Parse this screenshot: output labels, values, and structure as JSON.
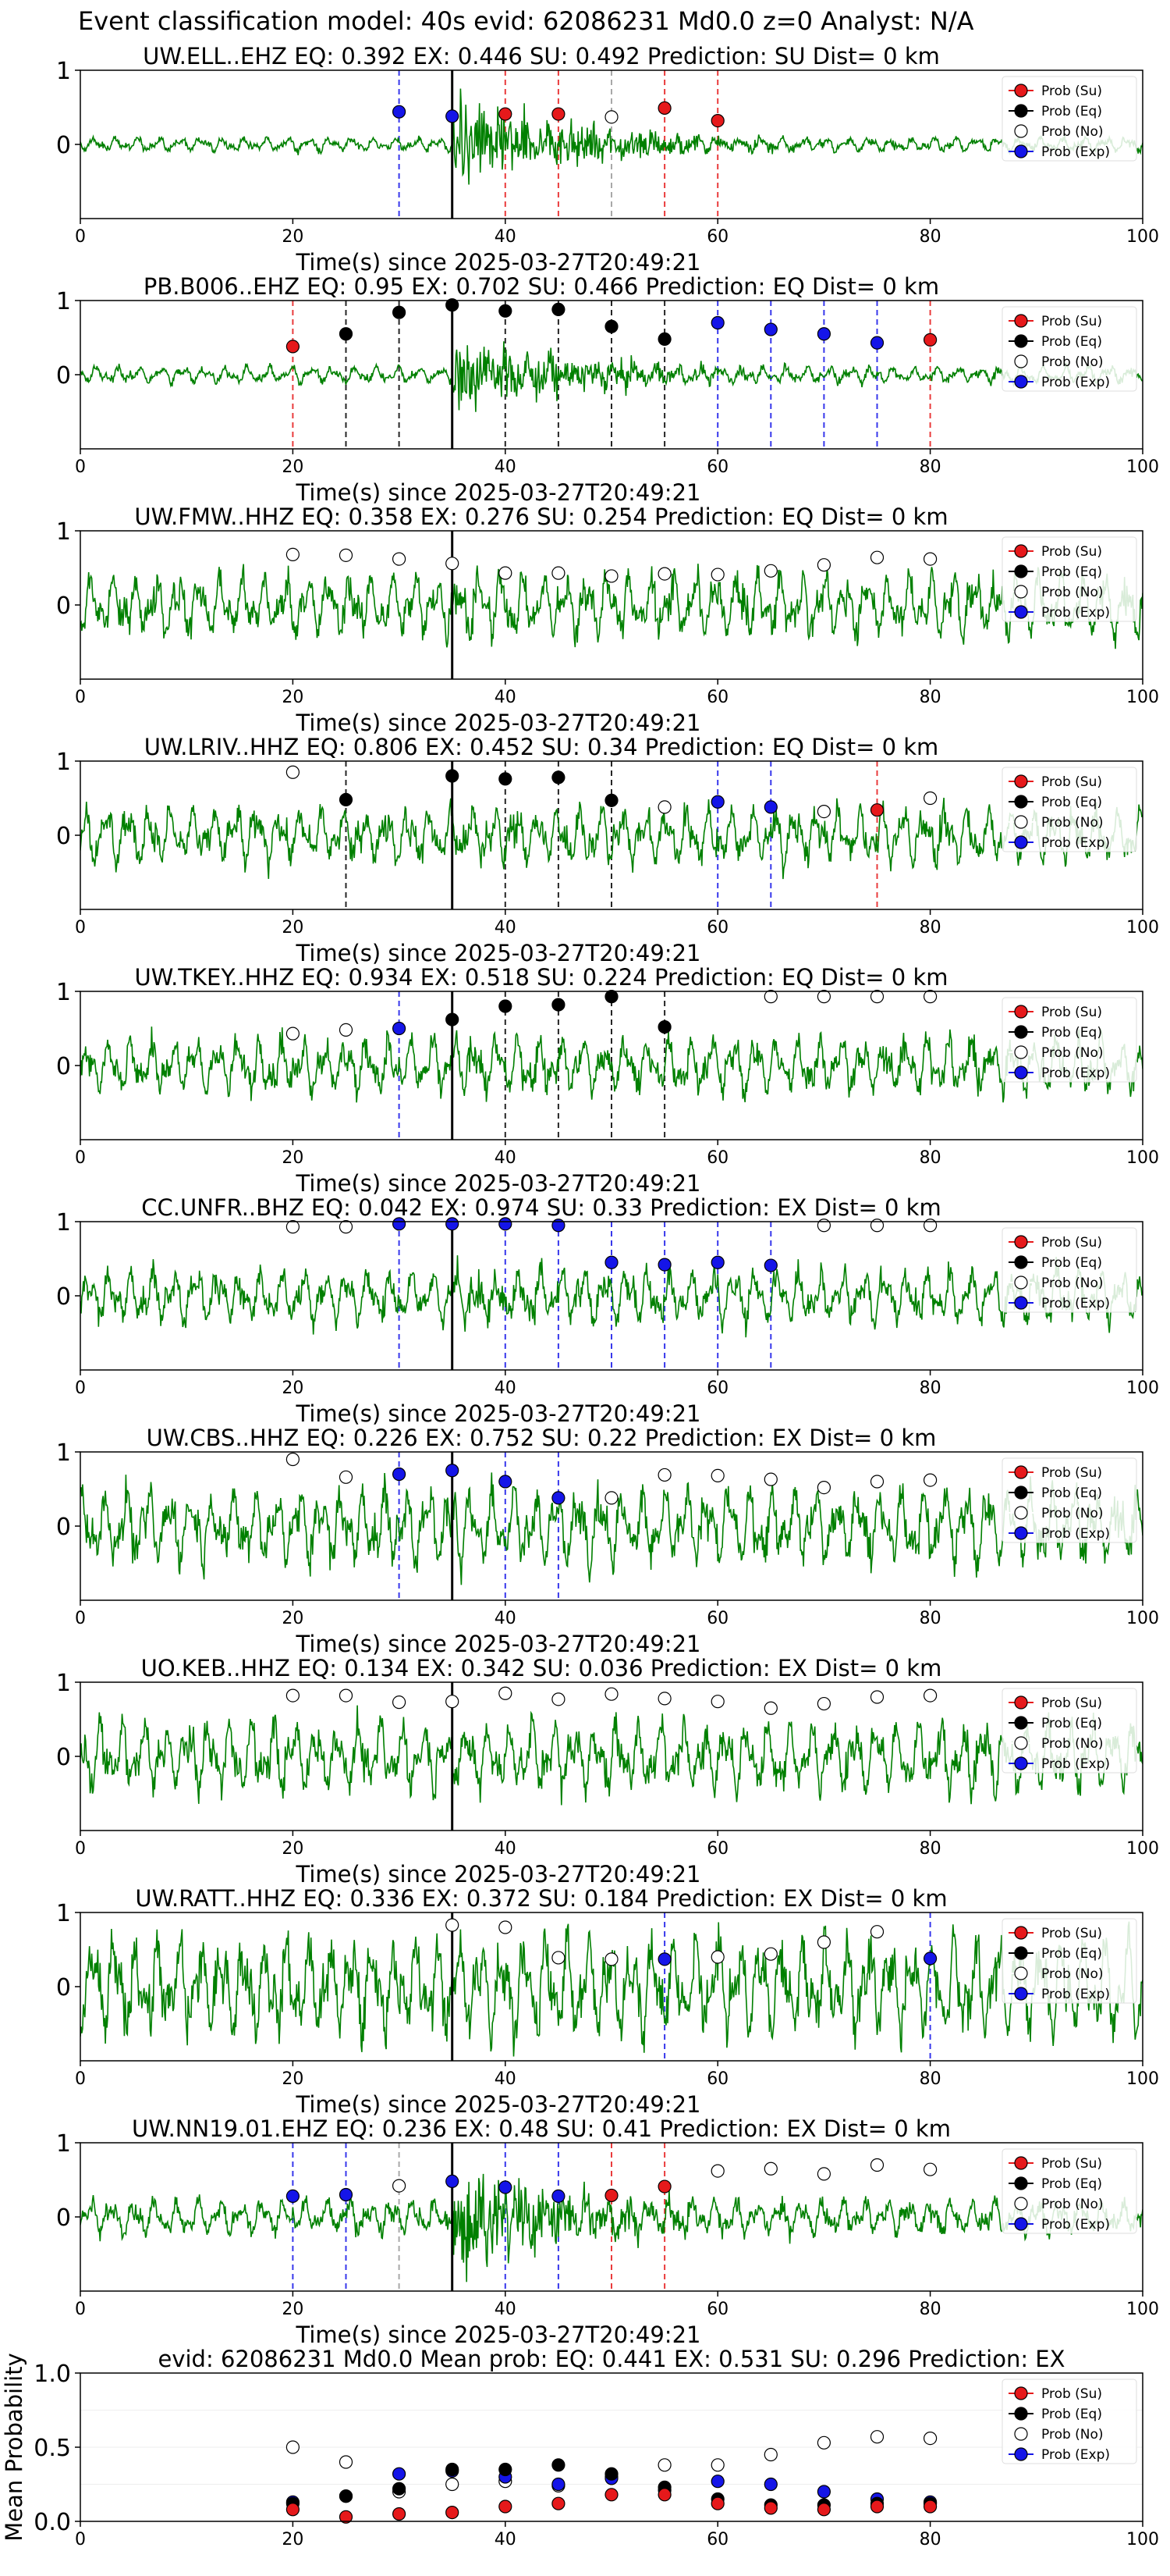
{
  "figure": {
    "title": "Event classification model: 40s evid: 62086231 Md0.0 z=0 Analyst: N/A"
  },
  "legend_items": [
    "Prob (Su)",
    "Prob (Eq)",
    "Prob (No)",
    "Prob (Exp)"
  ],
  "colors": {
    "su": "#e6191b",
    "eq": "#000000",
    "no": "#ffffff",
    "exp": "#1515e8",
    "waveform": "#008000",
    "pick": "#000000"
  },
  "chart_data": [
    {
      "type": "line",
      "station": "UW.ELL..EHZ",
      "title_parts": [
        "UW.ELL..EHZ",
        "EQ: 0.392",
        "EX: 0.446",
        "SU: 0.492",
        "Prediction: SU",
        "Dist= 0 km"
      ],
      "xlabel": "Time(s) since 2025-03-27T20:49:21",
      "xlim": [
        0,
        100
      ],
      "ylim": [
        -1,
        1
      ],
      "xticks": [
        "0",
        "20",
        "40",
        "60",
        "80",
        "100"
      ],
      "yticks": [
        "1",
        "0"
      ],
      "pick_time": 35,
      "noise_amp": 0.1,
      "event_amp": 0.45,
      "windows": [
        [
          30,
          "exp"
        ],
        [
          35,
          "exp"
        ],
        [
          40,
          "su"
        ],
        [
          45,
          "su"
        ],
        [
          50,
          "no"
        ],
        [
          55,
          "su"
        ],
        [
          60,
          "su"
        ]
      ],
      "markers": [
        [
          30,
          0.44,
          "exp"
        ],
        [
          35,
          0.38,
          "exp"
        ],
        [
          40,
          0.41,
          "su"
        ],
        [
          45,
          0.41,
          "su"
        ],
        [
          50,
          0.37,
          "no"
        ],
        [
          55,
          0.49,
          "su"
        ],
        [
          60,
          0.32,
          "su"
        ]
      ]
    },
    {
      "type": "line",
      "station": "PB.B006..EHZ",
      "title_parts": [
        "PB.B006..EHZ",
        "EQ: 0.95",
        "EX: 0.702",
        "SU: 0.466",
        "Prediction: EQ",
        "Dist= 0 km"
      ],
      "xlabel": "Time(s) since 2025-03-27T20:49:21",
      "xlim": [
        0,
        100
      ],
      "ylim": [
        -1,
        1
      ],
      "xticks": [
        "0",
        "20",
        "40",
        "60",
        "80",
        "100"
      ],
      "yticks": [
        "1",
        "0"
      ],
      "pick_time": 35,
      "noise_amp": 0.12,
      "event_amp": 0.35,
      "windows": [
        [
          20,
          "su"
        ],
        [
          25,
          "eq"
        ],
        [
          30,
          "eq"
        ],
        [
          35,
          "eq"
        ],
        [
          40,
          "eq"
        ],
        [
          45,
          "eq"
        ],
        [
          50,
          "eq"
        ],
        [
          55,
          "eq"
        ],
        [
          60,
          "exp"
        ],
        [
          65,
          "exp"
        ],
        [
          70,
          "exp"
        ],
        [
          75,
          "exp"
        ],
        [
          80,
          "su"
        ]
      ],
      "markers": [
        [
          20,
          0.38,
          "su"
        ],
        [
          25,
          0.55,
          "eq"
        ],
        [
          30,
          0.84,
          "eq"
        ],
        [
          35,
          0.94,
          "eq"
        ],
        [
          40,
          0.86,
          "eq"
        ],
        [
          45,
          0.88,
          "eq"
        ],
        [
          50,
          0.65,
          "eq"
        ],
        [
          55,
          0.48,
          "eq"
        ],
        [
          60,
          0.7,
          "exp"
        ],
        [
          65,
          0.61,
          "exp"
        ],
        [
          70,
          0.55,
          "exp"
        ],
        [
          75,
          0.43,
          "exp"
        ],
        [
          80,
          0.47,
          "su"
        ]
      ]
    },
    {
      "type": "line",
      "station": "UW.FMW..HHZ",
      "title_parts": [
        "UW.FMW..HHZ",
        "EQ: 0.358",
        "EX: 0.276",
        "SU: 0.254",
        "Prediction: EQ",
        "Dist= 0 km"
      ],
      "xlabel": "Time(s) since 2025-03-27T20:49:21",
      "xlim": [
        0,
        100
      ],
      "ylim": [
        -1,
        1
      ],
      "xticks": [
        "0",
        "20",
        "40",
        "60",
        "80",
        "100"
      ],
      "yticks": [
        "1",
        "0"
      ],
      "pick_time": 35,
      "noise_amp": 0.45,
      "event_amp": 0.1,
      "windows": [],
      "markers": [
        [
          20,
          0.68,
          "no"
        ],
        [
          25,
          0.67,
          "no"
        ],
        [
          30,
          0.62,
          "no"
        ],
        [
          35,
          0.56,
          "no"
        ],
        [
          40,
          0.43,
          "no"
        ],
        [
          45,
          0.43,
          "no"
        ],
        [
          50,
          0.39,
          "no"
        ],
        [
          55,
          0.42,
          "no"
        ],
        [
          60,
          0.41,
          "no"
        ],
        [
          65,
          0.46,
          "no"
        ],
        [
          70,
          0.54,
          "no"
        ],
        [
          75,
          0.64,
          "no"
        ],
        [
          80,
          0.62,
          "no"
        ]
      ]
    },
    {
      "type": "line",
      "station": "UW.LRIV..HHZ",
      "title_parts": [
        "UW.LRIV..HHZ",
        "EQ: 0.806",
        "EX: 0.452",
        "SU: 0.34",
        "Prediction: EQ",
        "Dist= 0 km"
      ],
      "xlabel": "Time(s) since 2025-03-27T20:49:21",
      "xlim": [
        0,
        100
      ],
      "ylim": [
        -1,
        1
      ],
      "xticks": [
        "0",
        "20",
        "40",
        "60",
        "80",
        "100"
      ],
      "yticks": [
        "1",
        "0"
      ],
      "pick_time": 35,
      "noise_amp": 0.4,
      "event_amp": 0.1,
      "windows": [
        [
          25,
          "eq"
        ],
        [
          35,
          "eq"
        ],
        [
          40,
          "eq"
        ],
        [
          45,
          "eq"
        ],
        [
          50,
          "eq"
        ],
        [
          60,
          "exp"
        ],
        [
          65,
          "exp"
        ],
        [
          75,
          "su"
        ]
      ],
      "markers": [
        [
          20,
          0.85,
          "no"
        ],
        [
          25,
          0.48,
          "eq"
        ],
        [
          35,
          0.8,
          "eq"
        ],
        [
          40,
          0.76,
          "eq"
        ],
        [
          45,
          0.78,
          "eq"
        ],
        [
          50,
          0.47,
          "eq"
        ],
        [
          55,
          0.38,
          "no"
        ],
        [
          60,
          0.45,
          "exp"
        ],
        [
          65,
          0.38,
          "exp"
        ],
        [
          70,
          0.32,
          "no"
        ],
        [
          75,
          0.34,
          "su"
        ],
        [
          80,
          0.5,
          "no"
        ]
      ]
    },
    {
      "type": "line",
      "station": "UW.TKEY..HHZ",
      "title_parts": [
        "UW.TKEY..HHZ",
        "EQ: 0.934",
        "EX: 0.518",
        "SU: 0.224",
        "Prediction: EQ",
        "Dist= 0 km"
      ],
      "xlabel": "Time(s) since 2025-03-27T20:49:21",
      "xlim": [
        0,
        100
      ],
      "ylim": [
        -1,
        1
      ],
      "xticks": [
        "0",
        "20",
        "40",
        "60",
        "80",
        "100"
      ],
      "yticks": [
        "1",
        "0"
      ],
      "pick_time": 35,
      "noise_amp": 0.4,
      "event_amp": 0.12,
      "windows": [
        [
          30,
          "exp"
        ],
        [
          35,
          "eq"
        ],
        [
          40,
          "eq"
        ],
        [
          45,
          "eq"
        ],
        [
          50,
          "eq"
        ],
        [
          55,
          "eq"
        ]
      ],
      "markers": [
        [
          20,
          0.43,
          "no"
        ],
        [
          25,
          0.48,
          "no"
        ],
        [
          30,
          0.5,
          "exp"
        ],
        [
          35,
          0.62,
          "eq"
        ],
        [
          40,
          0.8,
          "eq"
        ],
        [
          45,
          0.82,
          "eq"
        ],
        [
          50,
          0.93,
          "eq"
        ],
        [
          55,
          0.52,
          "eq"
        ],
        [
          65,
          0.93,
          "no"
        ],
        [
          70,
          0.93,
          "no"
        ],
        [
          75,
          0.93,
          "no"
        ],
        [
          80,
          0.93,
          "no"
        ]
      ]
    },
    {
      "type": "line",
      "station": "CC.UNFR..BHZ",
      "title_parts": [
        "CC.UNFR..BHZ",
        "EQ: 0.042",
        "EX: 0.974",
        "SU: 0.33",
        "Prediction: EX",
        "Dist= 0 km"
      ],
      "xlabel": "Time(s) since 2025-03-27T20:49:21",
      "xlim": [
        0,
        100
      ],
      "ylim": [
        -1,
        1
      ],
      "xticks": [
        "0",
        "20",
        "40",
        "60",
        "80",
        "100"
      ],
      "yticks": [
        "1",
        "0"
      ],
      "pick_time": 35,
      "noise_amp": 0.38,
      "event_amp": 0.12,
      "windows": [
        [
          30,
          "exp"
        ],
        [
          35,
          "exp"
        ],
        [
          40,
          "exp"
        ],
        [
          45,
          "exp"
        ],
        [
          50,
          "exp"
        ],
        [
          55,
          "exp"
        ],
        [
          60,
          "exp"
        ],
        [
          65,
          "exp"
        ]
      ],
      "markers": [
        [
          20,
          0.93,
          "no"
        ],
        [
          25,
          0.93,
          "no"
        ],
        [
          30,
          0.97,
          "exp"
        ],
        [
          35,
          0.97,
          "exp"
        ],
        [
          40,
          0.97,
          "exp"
        ],
        [
          45,
          0.95,
          "exp"
        ],
        [
          50,
          0.45,
          "exp"
        ],
        [
          55,
          0.42,
          "exp"
        ],
        [
          60,
          0.45,
          "exp"
        ],
        [
          65,
          0.41,
          "exp"
        ],
        [
          70,
          0.95,
          "no"
        ],
        [
          75,
          0.95,
          "no"
        ],
        [
          80,
          0.95,
          "no"
        ]
      ]
    },
    {
      "type": "line",
      "station": "UW.CBS..HHZ",
      "title_parts": [
        "UW.CBS..HHZ",
        "EQ: 0.226",
        "EX: 0.752",
        "SU: 0.22",
        "Prediction: EX",
        "Dist= 0 km"
      ],
      "xlabel": "Time(s) since 2025-03-27T20:49:21",
      "xlim": [
        0,
        100
      ],
      "ylim": [
        -1,
        1
      ],
      "xticks": [
        "0",
        "20",
        "40",
        "60",
        "80",
        "100"
      ],
      "yticks": [
        "1",
        "0"
      ],
      "pick_time": 35,
      "noise_amp": 0.55,
      "event_amp": 0.05,
      "windows": [
        [
          30,
          "exp"
        ],
        [
          40,
          "exp"
        ],
        [
          45,
          "exp"
        ]
      ],
      "markers": [
        [
          20,
          0.9,
          "no"
        ],
        [
          25,
          0.66,
          "no"
        ],
        [
          30,
          0.7,
          "exp"
        ],
        [
          35,
          0.75,
          "exp"
        ],
        [
          40,
          0.6,
          "exp"
        ],
        [
          45,
          0.38,
          "exp"
        ],
        [
          50,
          0.38,
          "no"
        ],
        [
          55,
          0.69,
          "no"
        ],
        [
          60,
          0.68,
          "no"
        ],
        [
          65,
          0.63,
          "no"
        ],
        [
          70,
          0.52,
          "no"
        ],
        [
          75,
          0.6,
          "no"
        ],
        [
          80,
          0.62,
          "no"
        ]
      ]
    },
    {
      "type": "line",
      "station": "UO.KEB..HHZ",
      "title_parts": [
        "UO.KEB..HHZ",
        "EQ: 0.134",
        "EX: 0.342",
        "SU: 0.036",
        "Prediction: EX",
        "Dist= 0 km"
      ],
      "xlabel": "Time(s) since 2025-03-27T20:49:21",
      "xlim": [
        0,
        100
      ],
      "ylim": [
        -1,
        1
      ],
      "xticks": [
        "0",
        "20",
        "40",
        "60",
        "80",
        "100"
      ],
      "yticks": [
        "1",
        "0"
      ],
      "pick_time": 35,
      "noise_amp": 0.5,
      "event_amp": 0.0,
      "windows": [],
      "markers": [
        [
          20,
          0.82,
          "no"
        ],
        [
          25,
          0.82,
          "no"
        ],
        [
          30,
          0.73,
          "no"
        ],
        [
          35,
          0.74,
          "no"
        ],
        [
          40,
          0.85,
          "no"
        ],
        [
          45,
          0.77,
          "no"
        ],
        [
          50,
          0.84,
          "no"
        ],
        [
          55,
          0.78,
          "no"
        ],
        [
          60,
          0.74,
          "no"
        ],
        [
          65,
          0.65,
          "no"
        ],
        [
          70,
          0.71,
          "no"
        ],
        [
          75,
          0.8,
          "no"
        ],
        [
          80,
          0.82,
          "no"
        ]
      ]
    },
    {
      "type": "line",
      "station": "UW.RATT..HHZ",
      "title_parts": [
        "UW.RATT..HHZ",
        "EQ: 0.336",
        "EX: 0.372",
        "SU: 0.184",
        "Prediction: EX",
        "Dist= 0 km"
      ],
      "xlabel": "Time(s) since 2025-03-27T20:49:21",
      "xlim": [
        0,
        100
      ],
      "ylim": [
        -1,
        1
      ],
      "xticks": [
        "0",
        "20",
        "40",
        "60",
        "80",
        "100"
      ],
      "yticks": [
        "1",
        "0"
      ],
      "pick_time": 35,
      "noise_amp": 0.7,
      "event_amp": 0.05,
      "windows": [
        [
          55,
          "exp"
        ],
        [
          80,
          "exp"
        ]
      ],
      "markers": [
        [
          35,
          0.83,
          "no"
        ],
        [
          40,
          0.8,
          "no"
        ],
        [
          45,
          0.39,
          "no"
        ],
        [
          50,
          0.37,
          "no"
        ],
        [
          55,
          0.37,
          "exp"
        ],
        [
          60,
          0.4,
          "no"
        ],
        [
          65,
          0.44,
          "no"
        ],
        [
          70,
          0.6,
          "no"
        ],
        [
          75,
          0.74,
          "no"
        ],
        [
          80,
          0.38,
          "exp"
        ]
      ]
    },
    {
      "type": "line",
      "station": "UW.NN19.01.EHZ",
      "title_parts": [
        "UW.NN19.01.EHZ",
        "EQ: 0.236",
        "EX: 0.48",
        "SU: 0.41",
        "Prediction: EX",
        "Dist= 0 km"
      ],
      "xlabel": "Time(s) since 2025-03-27T20:49:21",
      "xlim": [
        0,
        100
      ],
      "ylim": [
        -1,
        1
      ],
      "xticks": [
        "0",
        "20",
        "40",
        "60",
        "80",
        "100"
      ],
      "yticks": [
        "1",
        "0"
      ],
      "pick_time": 35,
      "noise_amp": 0.25,
      "event_amp": 0.5,
      "windows": [
        [
          20,
          "exp"
        ],
        [
          25,
          "exp"
        ],
        [
          30,
          "no"
        ],
        [
          35,
          "exp"
        ],
        [
          40,
          "exp"
        ],
        [
          45,
          "exp"
        ],
        [
          50,
          "su"
        ],
        [
          55,
          "su"
        ]
      ],
      "markers": [
        [
          20,
          0.28,
          "exp"
        ],
        [
          25,
          0.3,
          "exp"
        ],
        [
          30,
          0.42,
          "no"
        ],
        [
          35,
          0.48,
          "exp"
        ],
        [
          40,
          0.4,
          "exp"
        ],
        [
          45,
          0.28,
          "exp"
        ],
        [
          50,
          0.29,
          "su"
        ],
        [
          55,
          0.41,
          "su"
        ],
        [
          60,
          0.62,
          "no"
        ],
        [
          65,
          0.65,
          "no"
        ],
        [
          70,
          0.58,
          "no"
        ],
        [
          75,
          0.7,
          "no"
        ],
        [
          80,
          0.64,
          "no"
        ]
      ]
    },
    {
      "type": "scatter",
      "title_parts": [
        "evid: 62086231",
        "Md0.0",
        "Mean prob:",
        "EQ: 0.441",
        "EX: 0.531",
        "SU: 0.296",
        "Prediction: EX"
      ],
      "xlabel": "",
      "ylabel": "Mean Probability",
      "xlim": [
        0,
        100
      ],
      "ylim": [
        0,
        1
      ],
      "xticks": [
        "0",
        "20",
        "40",
        "60",
        "80",
        "100"
      ],
      "yticks": [
        "1.0",
        "0.5",
        "0.0"
      ],
      "x": [
        20,
        25,
        30,
        35,
        40,
        45,
        50,
        55,
        60,
        65,
        70,
        75,
        80
      ],
      "series": [
        {
          "key": "no",
          "values": [
            0.5,
            0.4,
            0.2,
            0.25,
            0.27,
            0.24,
            0.3,
            0.38,
            0.38,
            0.45,
            0.53,
            0.57,
            0.56
          ]
        },
        {
          "key": "exp",
          "values": [
            0.13,
            0.17,
            0.32,
            0.34,
            0.3,
            0.25,
            0.29,
            0.21,
            0.27,
            0.25,
            0.2,
            0.15,
            0.13
          ]
        },
        {
          "key": "eq",
          "values": [
            0.12,
            0.17,
            0.22,
            0.35,
            0.35,
            0.38,
            0.32,
            0.23,
            0.15,
            0.11,
            0.11,
            0.12,
            0.12
          ]
        },
        {
          "key": "su",
          "values": [
            0.08,
            0.03,
            0.05,
            0.06,
            0.1,
            0.12,
            0.18,
            0.18,
            0.12,
            0.09,
            0.08,
            0.1,
            0.1
          ]
        }
      ]
    }
  ]
}
